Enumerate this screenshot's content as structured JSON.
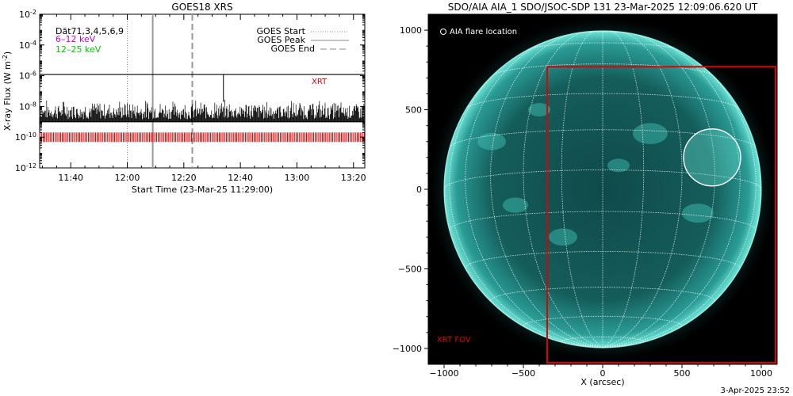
{
  "chart_data": [
    {
      "type": "line",
      "title": "GOES18 XRS",
      "xlabel": "Start Time (23-Mar-25 11:29:00)",
      "ylabel": "X-ray Flux (W m-2)",
      "ylabel_main": "X-ray Flux (W m",
      "ylabel_sup": "-2",
      "ylabel_close": ")",
      "x_ticks": [
        "11:40",
        "12:00",
        "12:20",
        "12:40",
        "13:00",
        "13:20"
      ],
      "x_tick_minutes": [
        11,
        31,
        51,
        71,
        91,
        111
      ],
      "xlim_minutes": [
        0,
        115
      ],
      "y_tick_exponents": [
        -2,
        -4,
        -6,
        -8,
        -10,
        -12
      ],
      "ylim": [
        1e-12,
        0.01
      ],
      "y_scale": "log",
      "legend_left": [
        {
          "label": "Dāt71,3,4,5,6,9",
          "color": "#000000"
        },
        {
          "label": "6–12 keV",
          "color": "#cc00cc"
        },
        {
          "label": "12–25 keV",
          "color": "#00cc00"
        }
      ],
      "legend_right": [
        {
          "label": "GOES Start",
          "style": "dotted"
        },
        {
          "label": "GOES Peak",
          "style": "solid"
        },
        {
          "label": "GOES End",
          "style": "dashed"
        }
      ],
      "event_lines_minutes": {
        "start": 31,
        "peak": 40,
        "end": 54
      },
      "annotation_xrt": "XRT",
      "series": [
        {
          "name": "",
          "values_note": "",
          "level": 1.2e-06,
          "color": "#000000"
        },
        {
          "name": "",
          "level_min": 1e-09,
          "level_max": 3e-08,
          "color": "#000000"
        },
        {
          "name": "",
          "level": 1e-10,
          "color": "#e00000"
        }
      ]
    },
    {
      "type": "image",
      "title": "SDO/AIA AIA_1 SDO/JSOC-SDP 131 23-Mar-2025 12:09:06.620 UT",
      "xlabel": "X (arcsec)",
      "x_ticks": [
        -1000,
        -500,
        0,
        500,
        1000
      ],
      "y_ticks": [
        1000,
        500,
        0,
        -500,
        -1000
      ],
      "xlim": [
        -1100,
        1100
      ],
      "ylim": [
        -1100,
        1100
      ],
      "legend": "AIA flare location",
      "flare_location": {
        "x": 690,
        "y": 200
      },
      "fov_label": "XRT FOV",
      "fov": {
        "x_min": -350,
        "x_max": 1100,
        "y_min": -1100,
        "y_max": 770
      },
      "sun_radius_arcsec": 1000
    }
  ],
  "footer": {
    "timestamp": "3-Apr-2025 23:52"
  },
  "colors": {
    "xrt": "#e00000",
    "sun": "#1a9e9a",
    "fov": "#e00000"
  }
}
